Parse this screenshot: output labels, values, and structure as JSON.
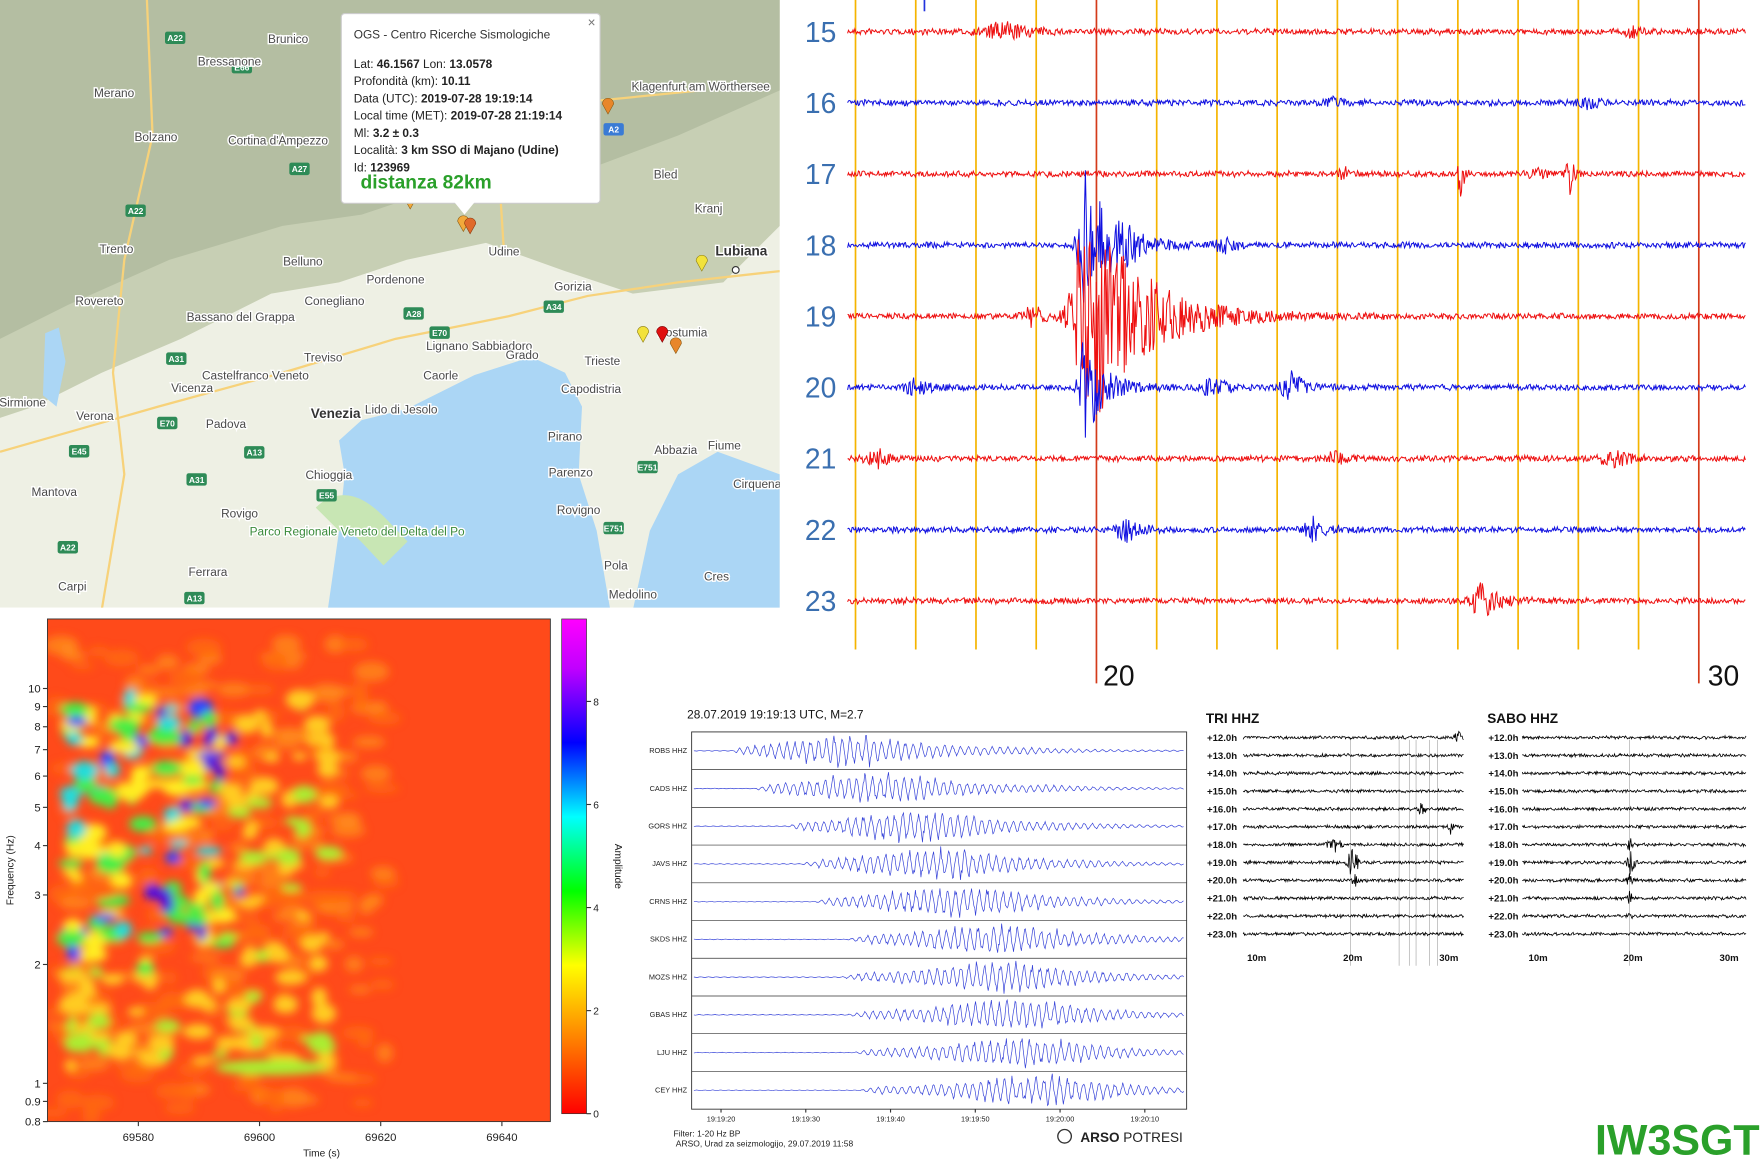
{
  "map": {
    "popup": {
      "title": "OGS - Centro Ricerche Sismologiche",
      "close": "×",
      "rows": [
        [
          "Lat:",
          "46.1567",
          "Lon:",
          "13.0578"
        ],
        [
          "Profondità (km):",
          "10.11"
        ],
        [
          "Data (UTC):",
          "2019-07-28 19:19:14"
        ],
        [
          "Local time (MET):",
          "2019-07-28 21:19:14"
        ],
        [
          "Ml:",
          "3.2 ± 0.3"
        ],
        [
          "Località:",
          "3 km SSO di Majano (Udine)"
        ],
        [
          "Id:",
          "123969"
        ]
      ],
      "distance": "distanza 82km"
    },
    "places": [
      "Brunico",
      "Bressanone",
      "Merano",
      "Bolzano",
      "Cortina d'Ampezzo",
      "Klagenfurt am Wörthersee",
      "Bled",
      "Kranj",
      "Lubiana",
      "Trento",
      "Rovereto",
      "Belluno",
      "Bassano del Grappa",
      "Pordenone",
      "Conegliano",
      "Udine",
      "Gorizia",
      "Treviso",
      "Castelfranco Veneto",
      "Vicenza",
      "Verona",
      "Padova",
      "Venezia",
      "Lido di Jesolo",
      "Caorle",
      "Lignano Sabbiadoro",
      "Trieste",
      "Capodistria",
      "Postumia",
      "Fiume",
      "Chioggia",
      "Rovigo",
      "Mantova",
      "Ferrara",
      "Carpi",
      "Pirano",
      "Parenzo",
      "Rovigno",
      "Pola",
      "Medolino",
      "Cres",
      "Abbazia",
      "Cirquena",
      "Sirmione",
      "Grado",
      "Parco Regionale Veneto del Delta del Po"
    ],
    "roads": [
      "A22",
      "E66",
      "A27",
      "A22",
      "A28",
      "E70",
      "A31",
      "E45",
      "A13",
      "E70",
      "A34",
      "A2",
      "A31",
      "E55",
      "A22",
      "E751",
      "E751",
      "A13"
    ]
  },
  "helicorder": {
    "hours": [
      "15",
      "16",
      "17",
      "18",
      "19",
      "20",
      "21",
      "22",
      "23"
    ],
    "minutes": [
      "20",
      "30"
    ]
  },
  "spectrogram": {
    "xlabel": "Time (s)",
    "ylabel": "Frequency (Hz)",
    "xlim": [
      69565,
      69648
    ],
    "xticks": [
      69580,
      69600,
      69620,
      69640
    ],
    "ylim": [
      0.8,
      15
    ],
    "yticks": [
      0.8,
      0.9,
      1,
      2,
      3,
      4,
      5,
      6,
      7,
      8,
      9,
      10
    ],
    "colorbar_label": "Amplitude",
    "clim": [
      0,
      9.6
    ],
    "cticks": [
      0,
      2,
      4,
      6,
      8
    ]
  },
  "arso": {
    "title": "28.07.2019  19:19:13 UTC, M=2.7",
    "stations": [
      "ROBS HHZ",
      "CADS HHZ",
      "GORS HHZ",
      "JAVS HHZ",
      "CRNS HHZ",
      "SKDS HHZ",
      "MOZS HHZ",
      "GBAS HHZ",
      "LJU HHZ",
      "CEY HHZ"
    ],
    "times": [
      "19:19:20",
      "19:19:30",
      "19:19:40",
      "19:19:50",
      "19:20:00",
      "19:20:10"
    ],
    "filter": "Filter: 1-20 Hz BP",
    "credit": "ARSO, Urad za seizmologijo, 29.07.2019  11:58",
    "logo_bold": "ARSO",
    "logo": "POTRESI"
  },
  "tri": {
    "title": "TRI HHZ",
    "hours": [
      "+12.0h",
      "+13.0h",
      "+14.0h",
      "+15.0h",
      "+16.0h",
      "+17.0h",
      "+18.0h",
      "+19.0h",
      "+20.0h",
      "+21.0h",
      "+22.0h",
      "+23.0h"
    ],
    "minutes": [
      "10m",
      "20m",
      "30m"
    ]
  },
  "sabo": {
    "title": "SABO HHZ",
    "hours": [
      "+12.0h",
      "+13.0h",
      "+14.0h",
      "+15.0h",
      "+16.0h",
      "+17.0h",
      "+18.0h",
      "+19.0h",
      "+20.0h",
      "+21.0h",
      "+22.0h",
      "+23.0h"
    ],
    "minutes": [
      "10m",
      "20m",
      "30m"
    ]
  },
  "watermark": "IW3SGT"
}
